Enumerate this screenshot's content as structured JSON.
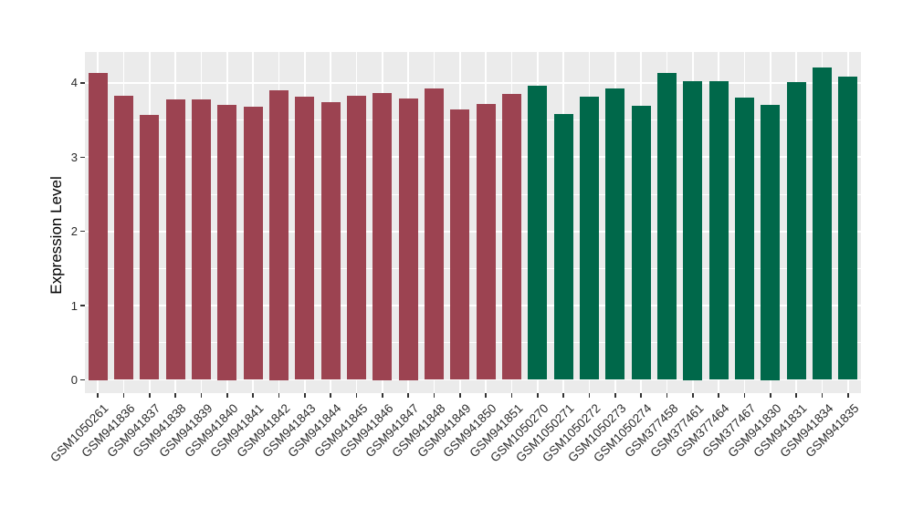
{
  "page": {
    "background": "#FFFFFF"
  },
  "chart_data": {
    "type": "bar",
    "title": "",
    "xlabel": "",
    "ylabel": "Expression Level",
    "ylim": [
      0,
      4.4
    ],
    "yticks": [
      0,
      1,
      2,
      3,
      4
    ],
    "legend_position": "none",
    "grid": {
      "horizontal_major": [
        0,
        1,
        2,
        3,
        4
      ],
      "horizontal_minor": [
        0.5,
        1.5,
        2.5,
        3.5
      ],
      "vertical_major": "one white line at each category center",
      "color": "#FFFFFF"
    },
    "categories": [
      "GSM1050261",
      "GSM941836",
      "GSM941837",
      "GSM941838",
      "GSM941839",
      "GSM941840",
      "GSM941841",
      "GSM941842",
      "GSM941843",
      "GSM941844",
      "GSM941845",
      "GSM941846",
      "GSM941847",
      "GSM941848",
      "GSM941849",
      "GSM941850",
      "GSM941851",
      "GSM1050270",
      "GSM1050271",
      "GSM1050272",
      "GSM1050273",
      "GSM1050274",
      "GSM377458",
      "GSM377461",
      "GSM377464",
      "GSM377467",
      "GSM941830",
      "GSM941831",
      "GSM941834",
      "GSM941835"
    ],
    "values": [
      4.14,
      3.83,
      3.57,
      3.78,
      3.78,
      3.71,
      3.68,
      3.9,
      3.81,
      3.74,
      3.83,
      3.87,
      3.79,
      3.92,
      3.64,
      3.72,
      3.85,
      3.96,
      3.58,
      3.82,
      3.92,
      3.69,
      4.13,
      4.03,
      4.02,
      3.8,
      3.71,
      4.01,
      4.21,
      4.09
    ],
    "groups": [
      "group1",
      "group1",
      "group1",
      "group1",
      "group1",
      "group1",
      "group1",
      "group1",
      "group1",
      "group1",
      "group1",
      "group1",
      "group1",
      "group1",
      "group1",
      "group1",
      "group1",
      "group2",
      "group2",
      "group2",
      "group2",
      "group2",
      "group2",
      "group2",
      "group2",
      "group2",
      "group2",
      "group2",
      "group2",
      "group2"
    ],
    "group_colors": {
      "group1": "#9C4351",
      "group2": "#00684A"
    }
  },
  "style": {
    "panel_background": "#EBEBEB",
    "gridline_color": "#FFFFFF",
    "tick_mark_color": "#333333",
    "tick_label_color": "#2B2B2B",
    "axis_title_color": "#000000"
  }
}
